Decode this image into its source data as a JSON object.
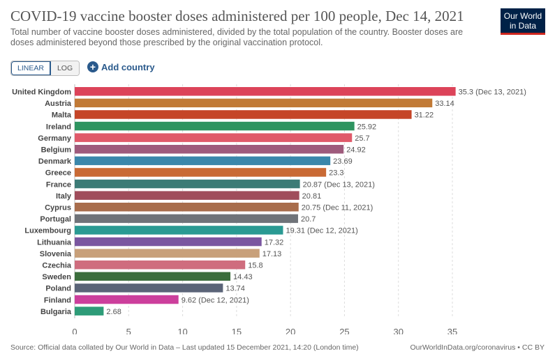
{
  "header": {
    "title": "COVID-19 vaccine booster doses administered per 100 people, Dec 14, 2021",
    "subtitle": "Total number of vaccine booster doses administered, divided by the total population of the country. Booster doses are doses administered beyond those prescribed by the original vaccination protocol.",
    "logo_line1": "Our World",
    "logo_line2": "in Data"
  },
  "controls": {
    "linear_label": "LINEAR",
    "log_label": "LOG",
    "add_country_label": "Add country"
  },
  "footer": {
    "source": "Source: Official data collated by Our World in Data – Last updated 15 December 2021, 14:20 (London time)",
    "credit": "OurWorldInData.org/coronavirus • CC BY"
  },
  "chart_data": {
    "type": "bar",
    "orientation": "horizontal",
    "title": "COVID-19 vaccine booster doses administered per 100 people, Dec 14, 2021",
    "xlim": [
      0,
      35
    ],
    "xticks": [
      0,
      5,
      10,
      15,
      20,
      25,
      30,
      35
    ],
    "grid": true,
    "categories": [
      "United Kingdom",
      "Austria",
      "Malta",
      "Ireland",
      "Germany",
      "Belgium",
      "Denmark",
      "Greece",
      "France",
      "Italy",
      "Cyprus",
      "Portugal",
      "Luxembourg",
      "Lithuania",
      "Slovenia",
      "Czechia",
      "Sweden",
      "Poland",
      "Finland",
      "Bulgaria"
    ],
    "values": [
      35.3,
      33.14,
      31.22,
      25.92,
      25.7,
      24.92,
      23.69,
      23.3,
      20.87,
      20.81,
      20.75,
      20.7,
      19.31,
      17.32,
      17.13,
      15.8,
      14.43,
      13.74,
      9.62,
      2.68
    ],
    "value_labels": [
      "35.3 (Dec 13, 2021)",
      "33.14",
      "31.22",
      "25.92",
      "25.7",
      "24.92",
      "23.69",
      "23.3",
      "20.87 (Dec 13, 2021)",
      "20.81",
      "20.75 (Dec 11, 2021)",
      "20.7",
      "19.31 (Dec 12, 2021)",
      "17.32",
      "17.13",
      "15.8",
      "14.43",
      "13.74",
      "9.62 (Dec 12, 2021)",
      "2.68"
    ],
    "colors": [
      "#dc4359",
      "#c17a36",
      "#c54527",
      "#2e9460",
      "#e05a6a",
      "#9e5b7c",
      "#3a87ab",
      "#c96a35",
      "#3c7b76",
      "#a04d5b",
      "#a86d4c",
      "#6f7379",
      "#2a9a93",
      "#7a56a0",
      "#c8a07a",
      "#cf6d7e",
      "#3b6d3c",
      "#5b6478",
      "#cc3f9c",
      "#2e9c78"
    ]
  }
}
